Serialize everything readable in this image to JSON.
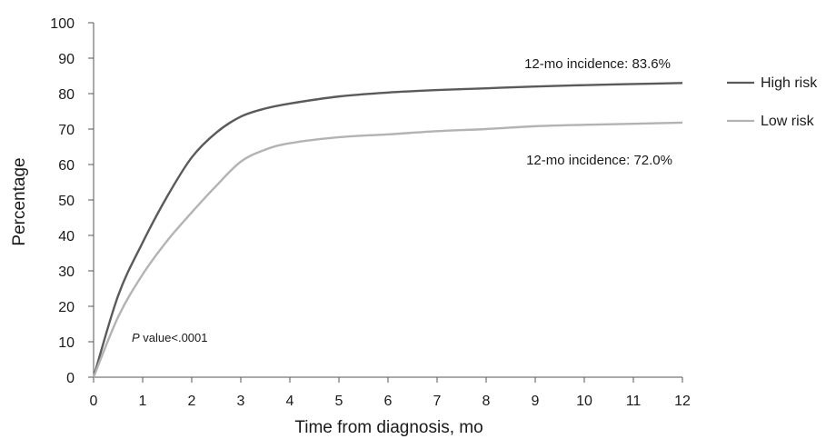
{
  "chart_data": {
    "type": "line",
    "title": "",
    "xlabel": "Time from diagnosis, mo",
    "ylabel": "Percentage",
    "xlim": [
      0,
      12
    ],
    "ylim": [
      0,
      100
    ],
    "x_ticks": [
      "0",
      "1",
      "2",
      "3",
      "4",
      "5",
      "6",
      "7",
      "8",
      "9",
      "10",
      "11",
      "12"
    ],
    "y_ticks": [
      "0",
      "10",
      "20",
      "30",
      "40",
      "50",
      "60",
      "70",
      "80",
      "90",
      "100"
    ],
    "grid": false,
    "legend_position": "right",
    "series": [
      {
        "name": "High risk",
        "color": "#5a5a5a",
        "x": [
          0,
          0.5,
          1,
          1.5,
          2,
          2.5,
          3,
          3.5,
          4,
          5,
          6,
          7,
          8,
          9,
          10,
          11,
          12
        ],
        "values": [
          0,
          23,
          38,
          51,
          62,
          69,
          73.5,
          75.8,
          77.2,
          79.2,
          80.3,
          81,
          81.5,
          82,
          82.4,
          82.7,
          83
        ]
      },
      {
        "name": "Low risk",
        "color": "#b3b3b3",
        "x": [
          0,
          0.5,
          1,
          1.5,
          2,
          2.5,
          3,
          3.5,
          4,
          5,
          6,
          7,
          8,
          9,
          10,
          11,
          12
        ],
        "values": [
          0,
          17,
          29,
          38.5,
          46.5,
          54,
          60.8,
          64.2,
          66,
          67.7,
          68.5,
          69.4,
          70,
          70.8,
          71.2,
          71.5,
          71.8
        ]
      }
    ],
    "annotations": {
      "high_risk_incidence": "12-mo incidence: 83.6%",
      "low_risk_incidence": "12-mo incidence: 72.0%",
      "p_value_italic": "P",
      "p_value_rest": " value<.0001"
    }
  }
}
